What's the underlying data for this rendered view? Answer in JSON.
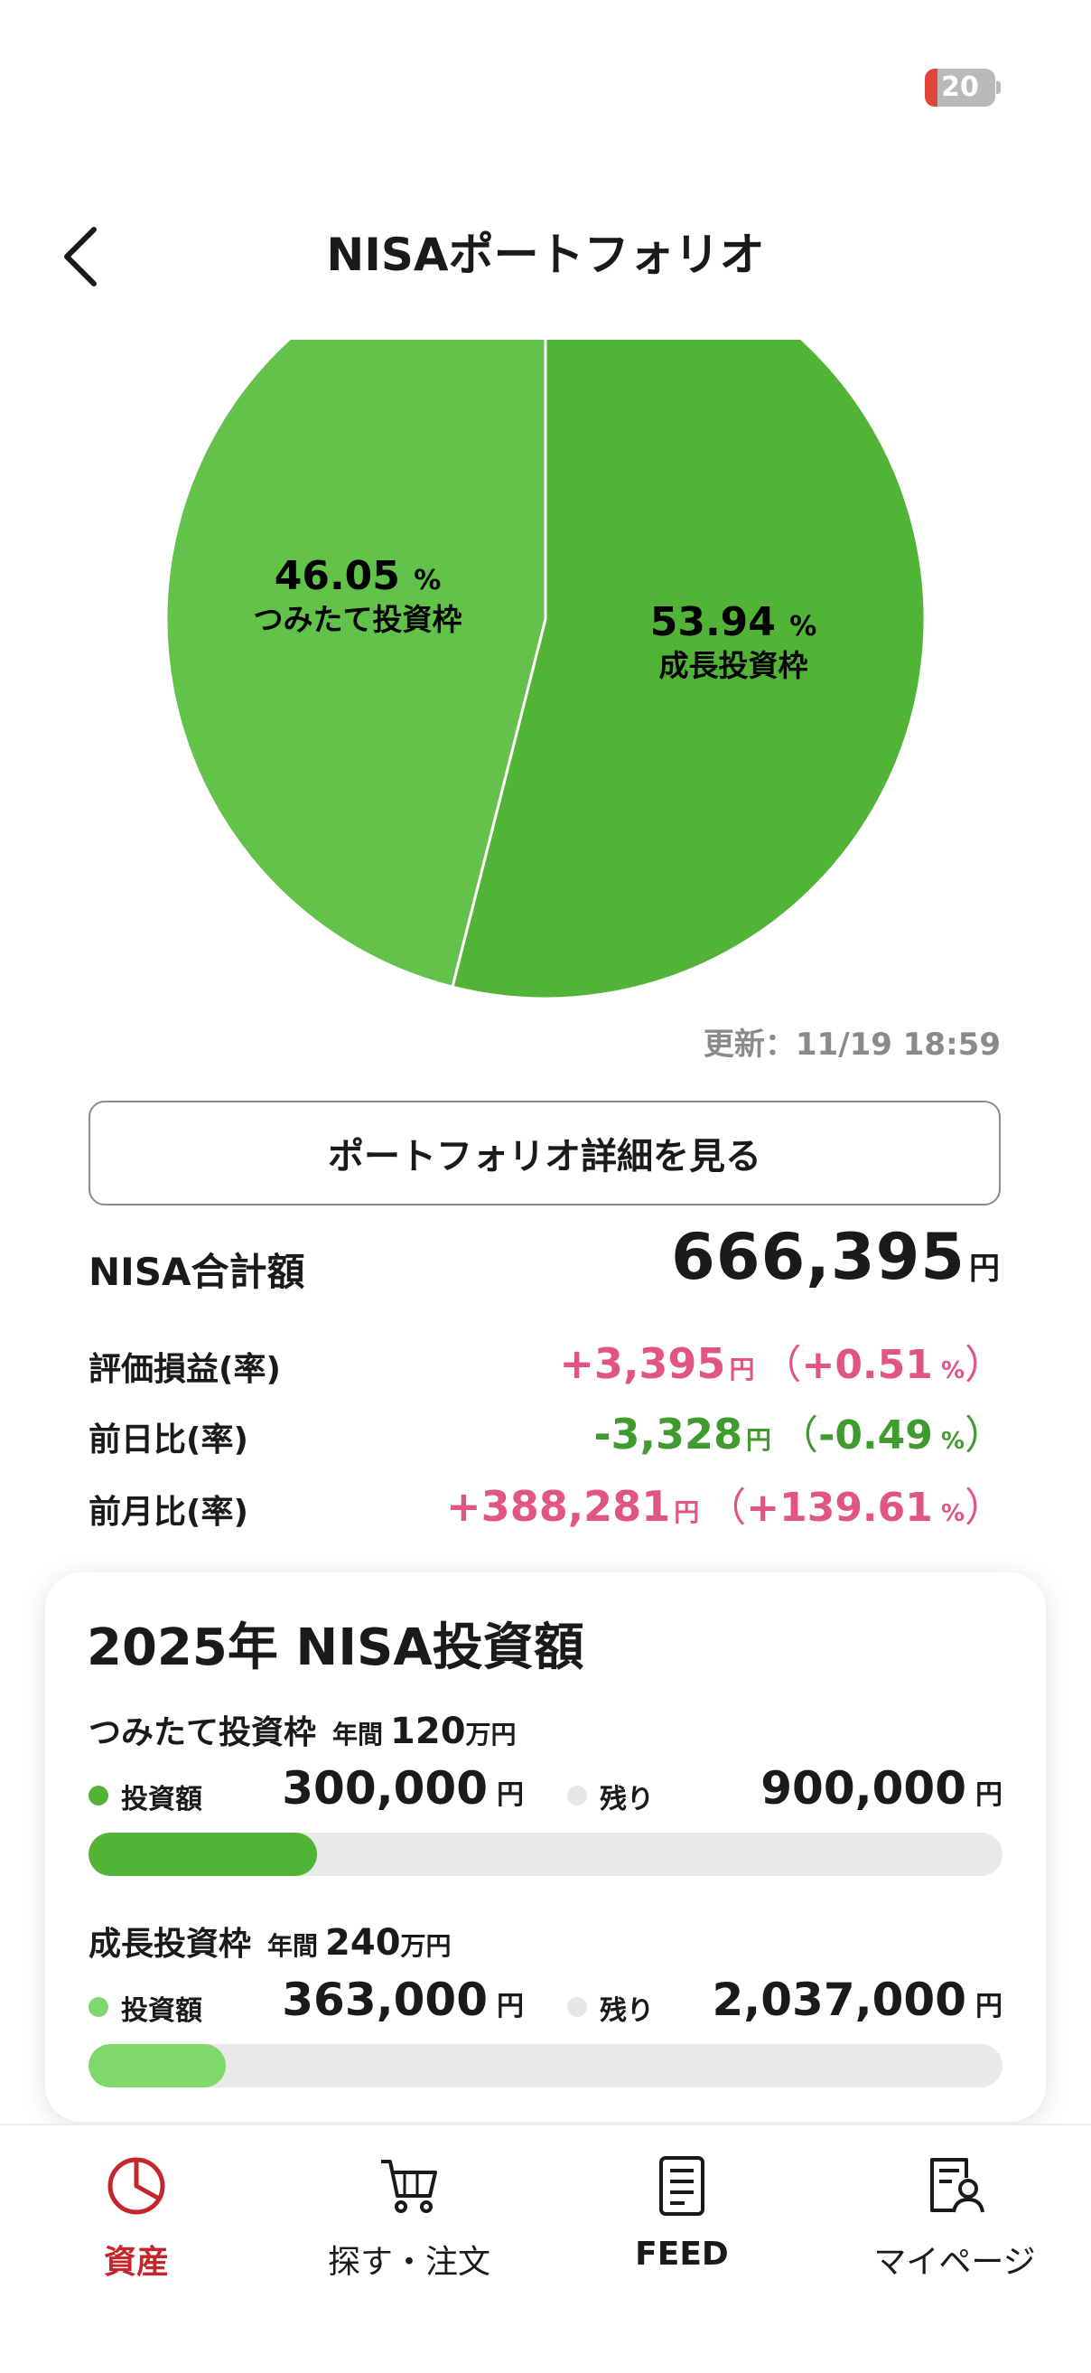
{
  "status_bar": {
    "battery": "20"
  },
  "header": {
    "title": "NISAポートフォリオ"
  },
  "pie": {
    "slices": [
      {
        "pct": "53.94",
        "pct_unit": "%",
        "label": "成長投資枠",
        "value": 53.94,
        "color": "#52b436"
      },
      {
        "pct": "46.05",
        "pct_unit": "%",
        "label": "つみたて投資枠",
        "value": 46.05,
        "color": "#62c24a"
      }
    ]
  },
  "update": {
    "label": "更新：",
    "time": "11/19 18:59"
  },
  "detail_button": "ポートフォリオ詳細を見る",
  "total": {
    "label": "NISA合計額",
    "value": "666,395",
    "unit": "円"
  },
  "rows": [
    {
      "label": "評価損益(率)",
      "value": "+3,395",
      "unit": "円",
      "rate": "+0.51",
      "rate_unit": "%",
      "color": "pink"
    },
    {
      "label": "前日比(率)",
      "value": "-3,328",
      "unit": "円",
      "rate": "-0.49",
      "rate_unit": "%",
      "color": "green"
    },
    {
      "label": "前月比(率)",
      "value": "+388,281",
      "unit": "円",
      "rate": "+139.61",
      "rate_unit": "%",
      "color": "pink"
    }
  ],
  "card": {
    "title": "2025年 NISA投資額",
    "sections": [
      {
        "name": "つみたて投資枠",
        "year_label": "年間",
        "limit": "120",
        "limit_unit": "万円",
        "invested_label": "投資額",
        "invested": "300,000",
        "remain_label": "残り",
        "remain": "900,000",
        "unit": "円",
        "progress": 0.25,
        "color": "#52b436"
      },
      {
        "name": "成長投資枠",
        "year_label": "年間",
        "limit": "240",
        "limit_unit": "万円",
        "invested_label": "投資額",
        "invested": "363,000",
        "remain_label": "残り",
        "remain": "2,037,000",
        "unit": "円",
        "progress": 0.15,
        "color": "#7fd86a"
      }
    ]
  },
  "nav": [
    {
      "label": "資産",
      "icon": "pie-chart-icon",
      "active": true
    },
    {
      "label": "探す・注文",
      "icon": "cart-icon",
      "active": false
    },
    {
      "label": "FEED",
      "icon": "document-icon",
      "active": false
    },
    {
      "label": "マイページ",
      "icon": "user-document-icon",
      "active": false
    }
  ],
  "colors": {
    "accent": "#c3272b",
    "pink": "#e05585",
    "green": "#3f9b2e"
  }
}
